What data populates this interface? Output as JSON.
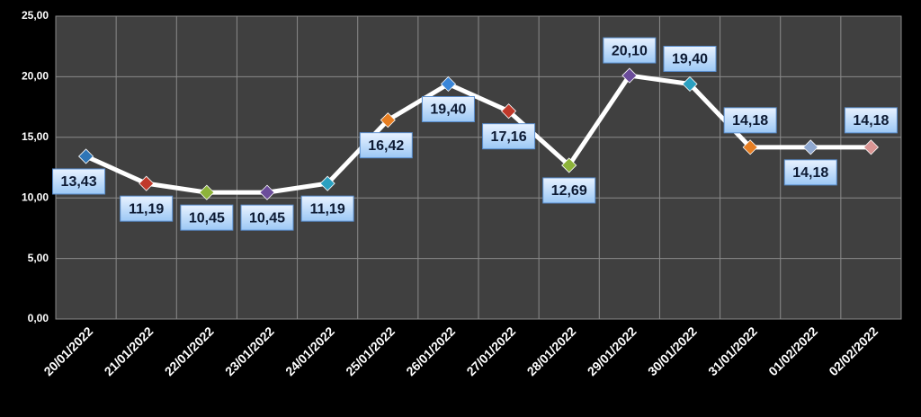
{
  "chart_data": {
    "type": "line",
    "categories": [
      "20/01/2022",
      "21/01/2022",
      "22/01/2022",
      "23/01/2022",
      "24/01/2022",
      "25/01/2022",
      "26/01/2022",
      "27/01/2022",
      "28/01/2022",
      "29/01/2022",
      "30/01/2022",
      "31/01/2022",
      "01/02/2022",
      "02/02/2022"
    ],
    "values": [
      13.43,
      11.19,
      10.45,
      10.45,
      11.19,
      16.42,
      19.4,
      17.16,
      12.69,
      20.1,
      19.4,
      14.18,
      14.18,
      14.18
    ],
    "value_labels": [
      "13,43",
      "11,19",
      "10,45",
      "10,45",
      "11,19",
      "16,42",
      "19,40",
      "17,16",
      "12,69",
      "20,10",
      "19,40",
      "14,18",
      "14,18",
      "14,18"
    ],
    "color": "#ffffff",
    "point_colors": [
      "#2e75b6",
      "#c0392b",
      "#8db33a",
      "#6b4c9a",
      "#2aa0c0",
      "#e67e22",
      "#3a86d8",
      "#c0392b",
      "#8db33a",
      "#6b4c9a",
      "#2aa0c0",
      "#e67e22",
      "#8fa8d0",
      "#d99594"
    ],
    "ylim": [
      0,
      25
    ],
    "yticks": [
      {
        "value": 0,
        "label": "0,00"
      },
      {
        "value": 5,
        "label": "5,00"
      },
      {
        "value": 10,
        "label": "10,00"
      },
      {
        "value": 15,
        "label": "15,00"
      },
      {
        "value": 20,
        "label": "20,00"
      },
      {
        "value": 25,
        "label": "25,00"
      }
    ],
    "grid": true
  }
}
